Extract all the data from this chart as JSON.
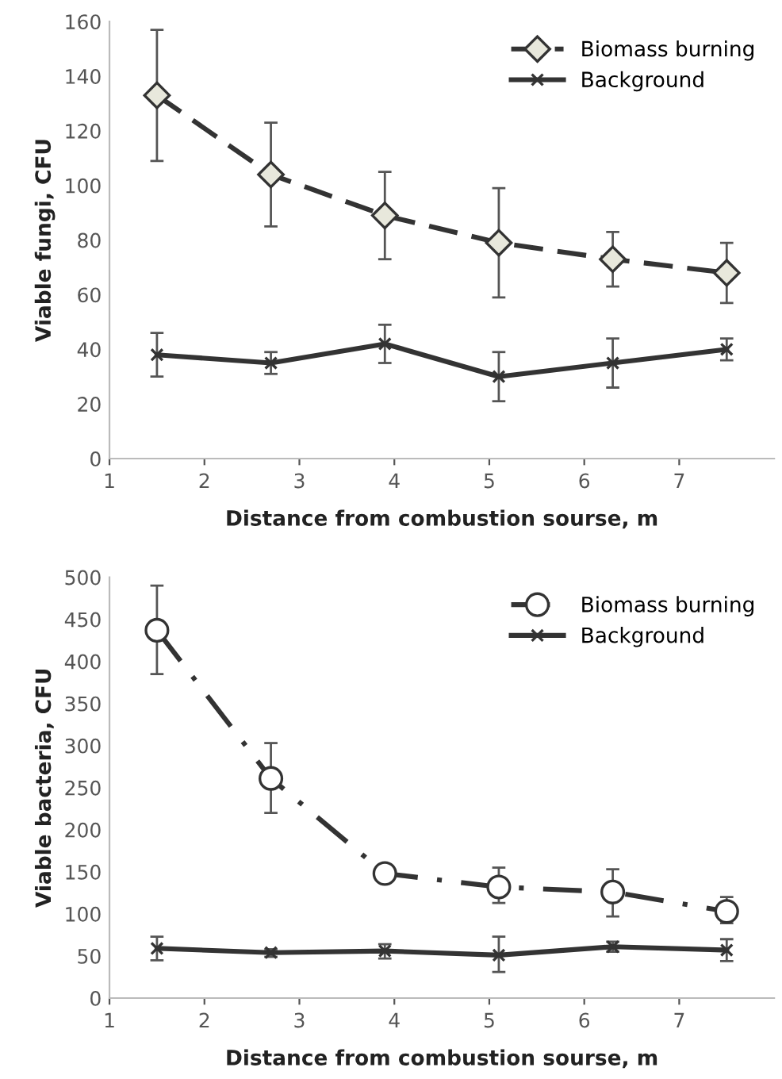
{
  "chart_data": [
    {
      "type": "line",
      "xlabel": "Distance from combustion sourse, m",
      "ylabel": "Viable fungi, CFU",
      "xlim": [
        1,
        8
      ],
      "xticks": [
        1,
        2,
        3,
        4,
        5,
        6,
        7
      ],
      "ylim": [
        0,
        160
      ],
      "yticks": [
        0,
        20,
        40,
        60,
        80,
        100,
        120,
        140,
        160
      ],
      "grid": false,
      "legend": "top right",
      "series": [
        {
          "name": "Biomass burning",
          "color": "#333333",
          "marker": "diamond",
          "line_style": "dashed",
          "x": [
            1.5,
            2.7,
            3.9,
            5.1,
            6.3,
            7.5
          ],
          "values": [
            133,
            104,
            89,
            79,
            73,
            68
          ],
          "errors": [
            [
              109,
              157
            ],
            [
              85,
              123
            ],
            [
              73,
              105
            ],
            [
              59,
              99
            ],
            [
              63,
              83
            ],
            [
              57,
              79
            ]
          ]
        },
        {
          "name": "Background",
          "color": "#333333",
          "marker": "cross",
          "line_style": "solid",
          "x": [
            1.5,
            2.7,
            3.9,
            5.1,
            6.3,
            7.5
          ],
          "values": [
            38,
            35,
            42,
            30,
            35,
            40
          ],
          "errors": [
            [
              30,
              46
            ],
            [
              31,
              39
            ],
            [
              35,
              49
            ],
            [
              21,
              39
            ],
            [
              26,
              44
            ],
            [
              36,
              44
            ]
          ]
        }
      ]
    },
    {
      "type": "line",
      "xlabel": "Distance from combustion sourse, m",
      "ylabel": "Viable bacteria, CFU",
      "xlim": [
        1,
        8
      ],
      "xticks": [
        1,
        2,
        3,
        4,
        5,
        6,
        7
      ],
      "ylim": [
        0,
        500
      ],
      "yticks": [
        0,
        50,
        100,
        150,
        200,
        250,
        300,
        350,
        400,
        450,
        500
      ],
      "grid": false,
      "legend": "top right",
      "series": [
        {
          "name": "Biomass burning",
          "color": "#333333",
          "marker": "circle",
          "line_style": "dashdot",
          "x": [
            1.5,
            2.7,
            3.9,
            5.1,
            6.3,
            7.5
          ],
          "values": [
            437,
            261,
            148,
            132,
            126,
            103
          ],
          "errors": [
            [
              385,
              490
            ],
            [
              220,
              303
            ],
            [
              137,
              155
            ],
            [
              113,
              155
            ],
            [
              97,
              153
            ],
            [
              89,
              120
            ]
          ]
        },
        {
          "name": "Background",
          "color": "#333333",
          "marker": "cross",
          "line_style": "solid",
          "x": [
            1.5,
            2.7,
            3.9,
            5.1,
            6.3,
            7.5
          ],
          "values": [
            59,
            54,
            56,
            51,
            61,
            57
          ],
          "errors": [
            [
              45,
              73
            ],
            [
              49,
              58
            ],
            [
              47,
              64
            ],
            [
              31,
              73
            ],
            [
              55,
              67
            ],
            [
              44,
              70
            ]
          ]
        }
      ]
    }
  ]
}
